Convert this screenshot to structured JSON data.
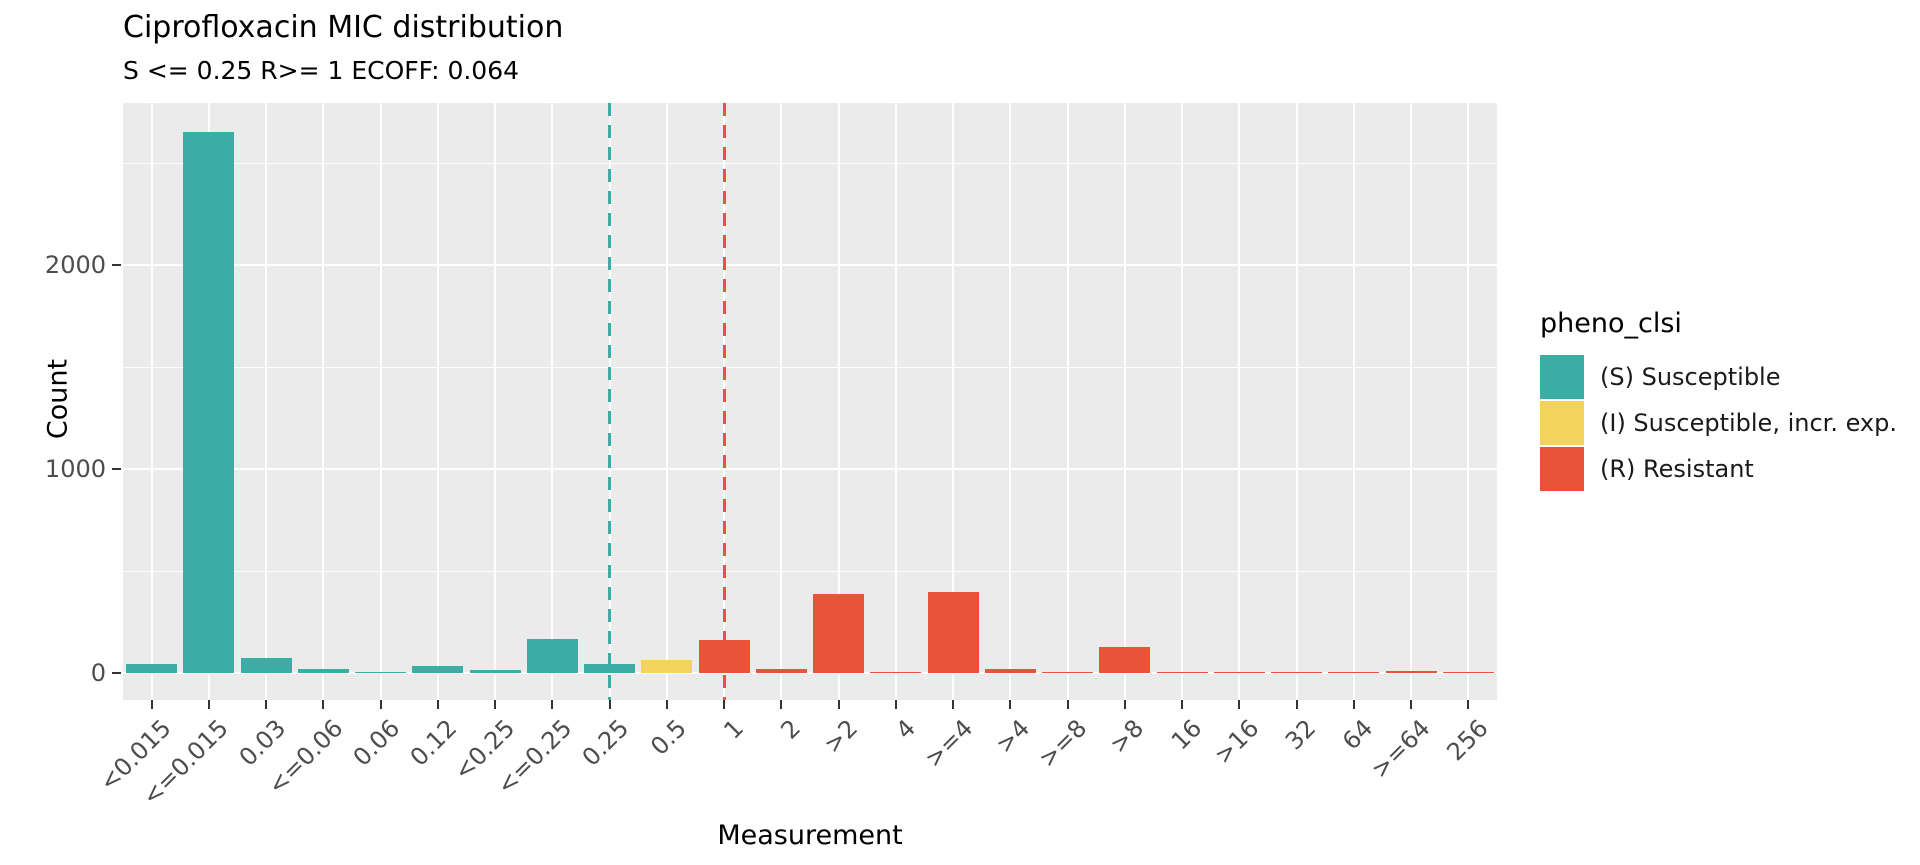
{
  "title": "Ciprofloxacin MIC distribution",
  "subtitle": "S <= 0.25 R>= 1 ECOFF: 0.064",
  "legend": {
    "title": "pheno_clsi",
    "entries": [
      {
        "key": "S",
        "label": "(S) Susceptible",
        "color": "#3CADA4"
      },
      {
        "key": "I",
        "label": "(I) Susceptible, incr. exp.",
        "color": "#F3D35E"
      },
      {
        "key": "R",
        "label": "(R) Resistant",
        "color": "#E95438"
      }
    ]
  },
  "chart_data": {
    "type": "bar",
    "title": "Ciprofloxacin MIC distribution",
    "subtitle": "S <= 0.25 R>= 1 ECOFF: 0.064",
    "xlabel": "Measurement",
    "ylabel": "Count",
    "categories": [
      "<0.015",
      "<=0.015",
      "0.03",
      "<=0.06",
      "0.06",
      "0.12",
      "<0.25",
      "<=0.25",
      "0.25",
      "0.5",
      "1",
      "2",
      ">2",
      "4",
      ">=4",
      ">4",
      ">=8",
      ">8",
      "16",
      ">16",
      "32",
      "64",
      ">=64",
      "256"
    ],
    "values": [
      45,
      2650,
      75,
      18,
      6,
      36,
      13,
      165,
      45,
      65,
      160,
      22,
      385,
      7,
      395,
      22,
      5,
      125,
      4,
      4,
      4,
      4,
      8,
      4
    ],
    "bar_classes": [
      "S",
      "S",
      "S",
      "S",
      "S",
      "S",
      "S",
      "S",
      "S",
      "I",
      "R",
      "R",
      "R",
      "R",
      "R",
      "R",
      "R",
      "R",
      "R",
      "R",
      "R",
      "R",
      "R",
      "R"
    ],
    "class_colors": {
      "S": "#3CADA4",
      "I": "#F3D35E",
      "R": "#E95438"
    },
    "yticks": [
      0,
      1000,
      2000
    ],
    "yticks_minor": [
      500,
      1500,
      2500
    ],
    "ylim": [
      0,
      2790
    ],
    "vlines": [
      {
        "at_category": "0.25",
        "color": "#3CADA4",
        "style": "dashed",
        "meaning": "S breakpoint <= 0.25"
      },
      {
        "at_category": "1",
        "color": "#E95438",
        "style": "dashed",
        "meaning": "R breakpoint >= 1"
      }
    ],
    "legend_title": "pheno_clsi",
    "legend_position": "right",
    "grid": true,
    "panel_bg": "#EBEBEB",
    "gridline_color": "#ffffff"
  }
}
